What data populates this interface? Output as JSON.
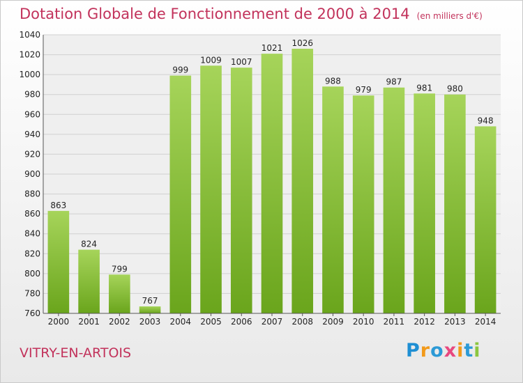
{
  "title": "Dotation Globale de Fonctionnement de 2000 à 2014",
  "unit": "(en milliers d'€)",
  "place": "VITRY-EN-ARTOIS",
  "logo": "Proxiti",
  "colors": {
    "title": "#c2325b",
    "bar_top": "#a6d45a",
    "bar_bottom": "#6aa51c",
    "grid": "#d0d0d0"
  },
  "chart_data": {
    "type": "bar",
    "title": "Dotation Globale de Fonctionnement de 2000 à 2014",
    "subtitle": "(en milliers d'€)",
    "categories": [
      "2000",
      "2001",
      "2002",
      "2003",
      "2004",
      "2005",
      "2006",
      "2007",
      "2008",
      "2009",
      "2010",
      "2011",
      "2012",
      "2013",
      "2014"
    ],
    "values": [
      863,
      824,
      799,
      767,
      999,
      1009,
      1007,
      1021,
      1026,
      988,
      979,
      987,
      981,
      980,
      948
    ],
    "ylim": [
      760,
      1040
    ],
    "yticks": [
      760,
      780,
      800,
      820,
      840,
      860,
      880,
      900,
      920,
      940,
      960,
      980,
      1000,
      1020,
      1040
    ],
    "grid": true,
    "xlabel": "",
    "ylabel": ""
  }
}
